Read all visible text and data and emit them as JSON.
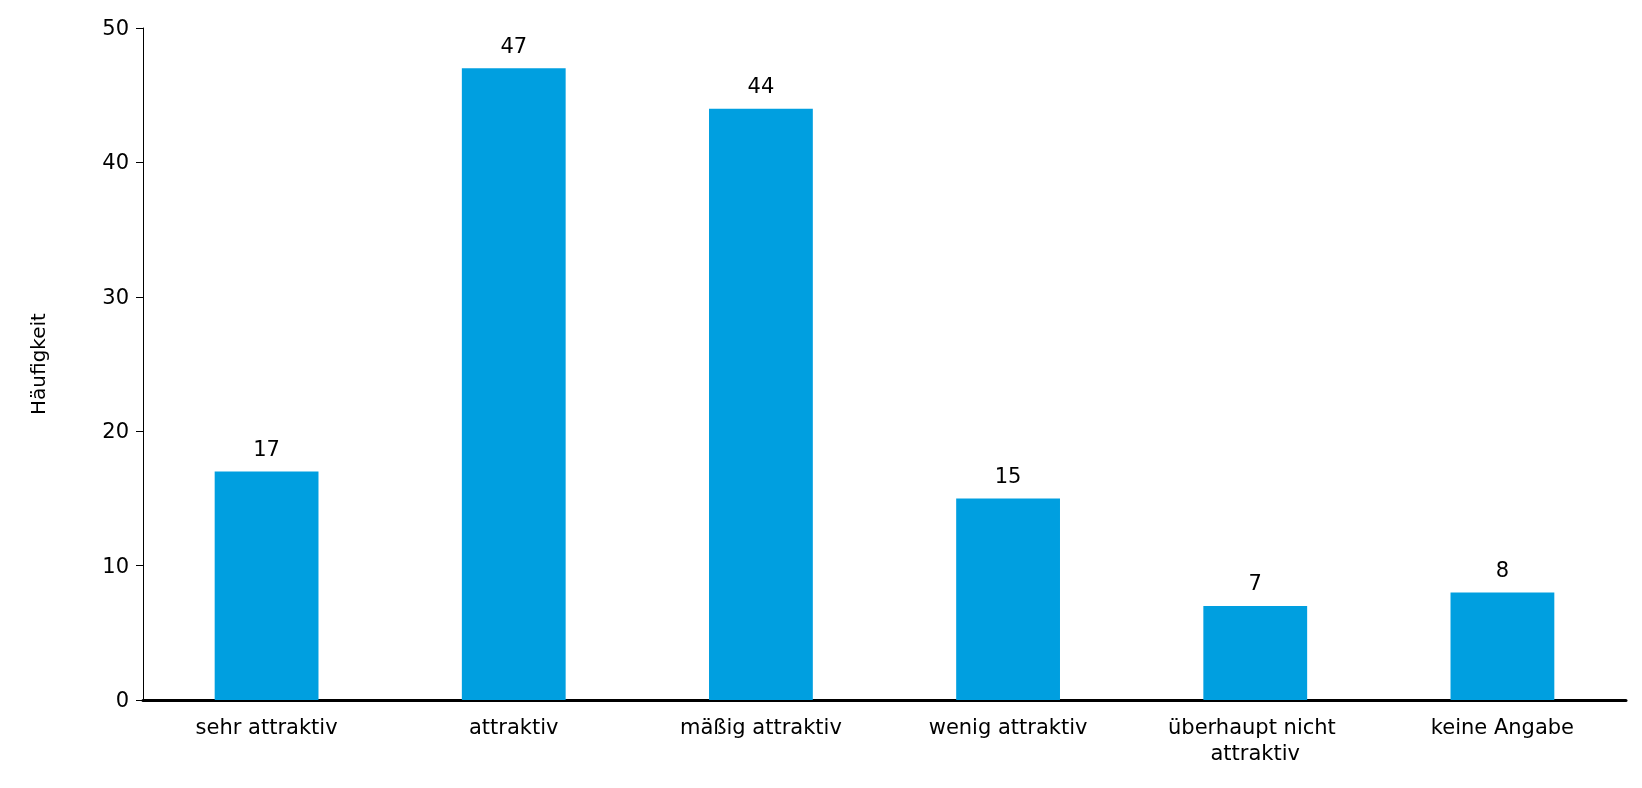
{
  "chart_data": {
    "type": "bar",
    "ylabel": "Häufigkeit",
    "categories": [
      "sehr attraktiv",
      "attraktiv",
      "mäßig attraktiv",
      "wenig attraktiv",
      "überhaupt nicht attraktiv",
      "keine Angabe"
    ],
    "values": [
      17,
      47,
      44,
      15,
      7,
      8
    ],
    "color": "#009fe0",
    "ylim": [
      0,
      50
    ],
    "yticks": [
      0,
      10,
      20,
      30,
      40,
      50
    ],
    "grid": false,
    "data_labels": true
  }
}
